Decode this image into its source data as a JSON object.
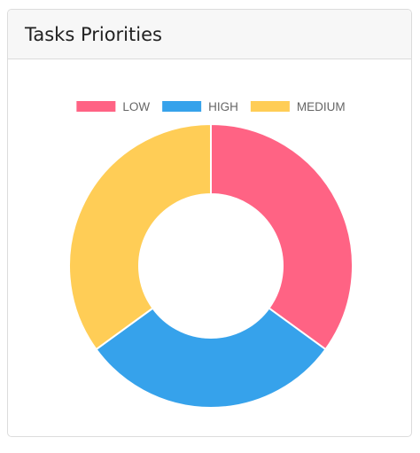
{
  "card": {
    "title": "Tasks Priorities"
  },
  "chart_data": {
    "type": "doughnut",
    "categories": [
      "LOW",
      "HIGH",
      "MEDIUM"
    ],
    "values": [
      35,
      30,
      35
    ],
    "colors": [
      "#ff6384",
      "#36a2eb",
      "#ffcd56"
    ],
    "legend_position": "top",
    "title": "",
    "xlabel": "",
    "ylabel": ""
  }
}
